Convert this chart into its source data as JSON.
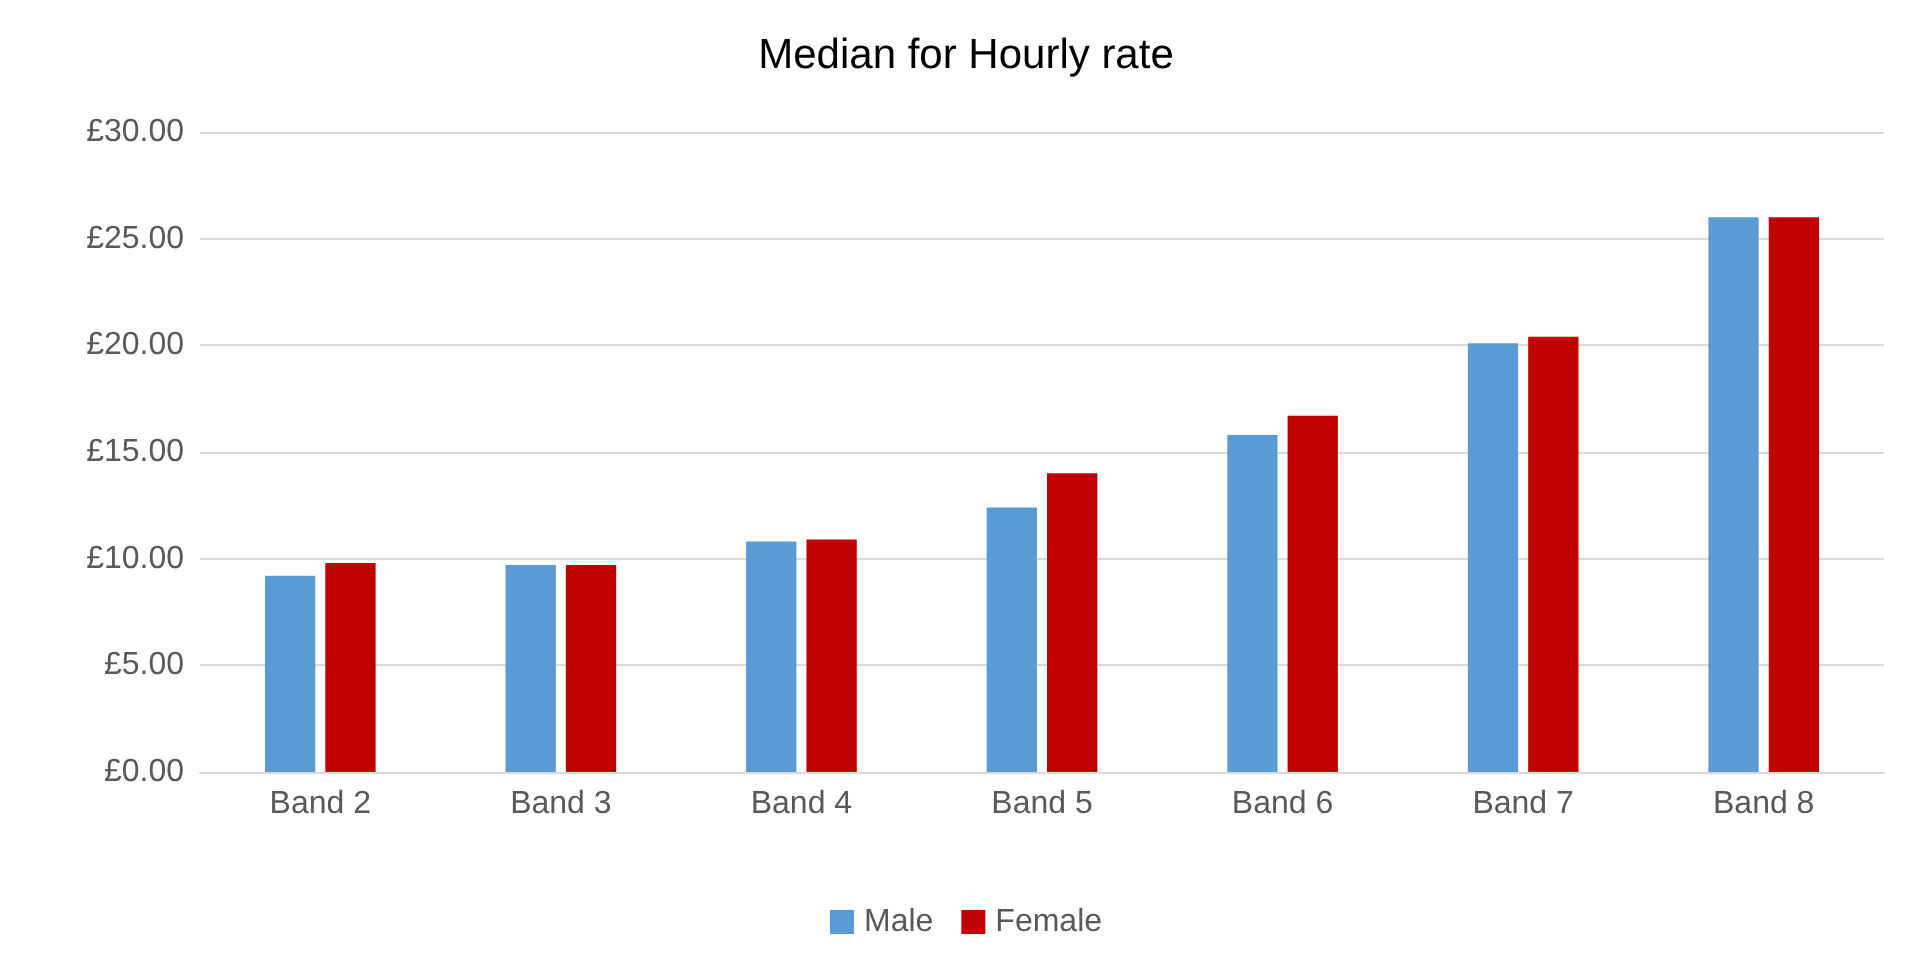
{
  "chart_data": {
    "type": "bar",
    "title": "Median for Hourly rate",
    "categories": [
      "Band 2",
      "Band 3",
      "Band 4",
      "Band 5",
      "Band 6",
      "Band 7",
      "Band 8"
    ],
    "series": [
      {
        "name": "Male",
        "color": "#5b9bd5",
        "values": [
          9.2,
          9.7,
          10.8,
          12.4,
          15.8,
          20.1,
          26.0
        ]
      },
      {
        "name": "Female",
        "color": "#c00000",
        "values": [
          9.8,
          9.7,
          10.9,
          14.0,
          16.7,
          20.4,
          26.0
        ]
      }
    ],
    "ylim": [
      0,
      30
    ],
    "yticks": [
      {
        "value": 0,
        "label": "£0.00"
      },
      {
        "value": 5,
        "label": "£5.00"
      },
      {
        "value": 10,
        "label": "£10.00"
      },
      {
        "value": 15,
        "label": "£15.00"
      },
      {
        "value": 20,
        "label": "£20.00"
      },
      {
        "value": 25,
        "label": "£25.00"
      },
      {
        "value": 30,
        "label": "£30.00"
      }
    ],
    "grid": "y",
    "legend": "bottom"
  }
}
